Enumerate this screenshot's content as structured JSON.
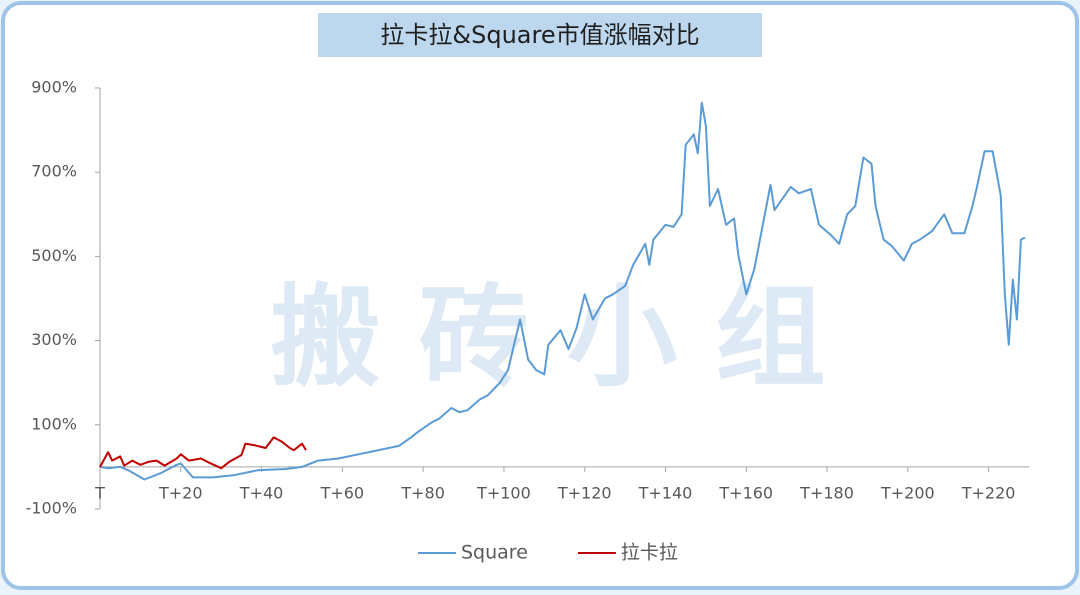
{
  "chart_data": {
    "type": "line",
    "title": "拉卡拉&Square市值涨幅对比",
    "watermark": "搬 砖 小 组",
    "xlim": [
      0,
      230
    ],
    "ylim": [
      -100,
      900
    ],
    "xticks": [
      {
        "value": 0,
        "label": "T"
      },
      {
        "value": 20,
        "label": "T+20"
      },
      {
        "value": 40,
        "label": "T+40"
      },
      {
        "value": 60,
        "label": "T+60"
      },
      {
        "value": 80,
        "label": "T+80"
      },
      {
        "value": 100,
        "label": "T+100"
      },
      {
        "value": 120,
        "label": "T+120"
      },
      {
        "value": 140,
        "label": "T+140"
      },
      {
        "value": 160,
        "label": "T+160"
      },
      {
        "value": 180,
        "label": "T+180"
      },
      {
        "value": 200,
        "label": "T+200"
      },
      {
        "value": 220,
        "label": "T+220"
      }
    ],
    "yticks": [
      {
        "value": 900,
        "label": "900%"
      },
      {
        "value": 700,
        "label": "700%"
      },
      {
        "value": 500,
        "label": "500%"
      },
      {
        "value": 300,
        "label": "300%"
      },
      {
        "value": 100,
        "label": "100%"
      },
      {
        "value": -100,
        "label": "-100%"
      }
    ],
    "legend": "bottom",
    "series": [
      {
        "name": "Square",
        "color": "#5b9bd5",
        "x": [
          0,
          2,
          5,
          7,
          11,
          15,
          19,
          20,
          23,
          28,
          33,
          39,
          46,
          50,
          54,
          59,
          64,
          69,
          74,
          77,
          79,
          82,
          84,
          87,
          89,
          91,
          94,
          96,
          99,
          101,
          104,
          106,
          108,
          110,
          111,
          114,
          116,
          118,
          120,
          122,
          125,
          127,
          130,
          132,
          135,
          136,
          137,
          140,
          142,
          144,
          145,
          147,
          148,
          149,
          150,
          151,
          153,
          155,
          157,
          158,
          160,
          162,
          166,
          167,
          171,
          173,
          176,
          178,
          181,
          183,
          185,
          187,
          189,
          191,
          192,
          194,
          196,
          199,
          201,
          203,
          206,
          209,
          211,
          214,
          216,
          217,
          219,
          221,
          223,
          224,
          225,
          226,
          227,
          228,
          229
        ],
        "values": [
          0,
          -3,
          0,
          -8,
          -30,
          -15,
          5,
          8,
          -25,
          -25,
          -20,
          -8,
          -5,
          0,
          15,
          20,
          30,
          40,
          50,
          70,
          85,
          105,
          115,
          140,
          130,
          135,
          160,
          170,
          200,
          230,
          350,
          255,
          230,
          220,
          290,
          325,
          280,
          330,
          410,
          350,
          400,
          410,
          430,
          480,
          530,
          480,
          540,
          575,
          570,
          600,
          765,
          790,
          745,
          865,
          810,
          620,
          660,
          575,
          590,
          505,
          410,
          470,
          670,
          610,
          665,
          650,
          660,
          575,
          550,
          530,
          600,
          620,
          735,
          720,
          620,
          540,
          525,
          490,
          530,
          540,
          560,
          600,
          555,
          555,
          620,
          660,
          750,
          750,
          645,
          410,
          290,
          445,
          350,
          540,
          545
        ]
      },
      {
        "name": "拉卡拉",
        "color": "#c00000",
        "x": [
          0,
          2,
          3,
          5,
          6,
          8,
          10,
          12,
          14,
          16,
          19,
          20,
          22,
          25,
          27,
          30,
          32,
          35,
          36,
          38,
          41,
          43,
          45,
          47,
          48,
          50,
          51
        ],
        "values": [
          0,
          35,
          15,
          25,
          3,
          15,
          5,
          12,
          15,
          3,
          20,
          30,
          15,
          20,
          10,
          -3,
          12,
          28,
          55,
          52,
          45,
          70,
          60,
          45,
          40,
          55,
          40
        ]
      }
    ]
  }
}
